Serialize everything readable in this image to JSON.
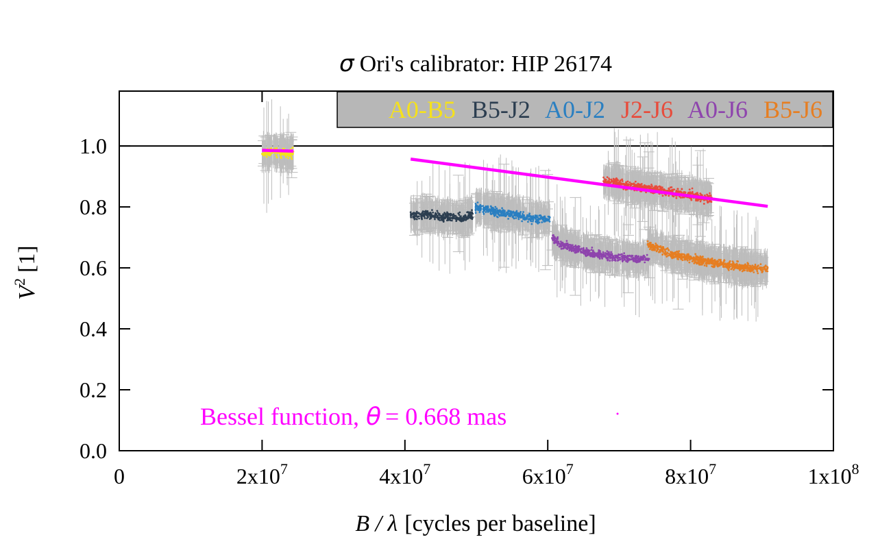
{
  "chart_data": {
    "type": "scatter",
    "title": "Ori's calibrator: HIP 26174",
    "title_symbol": "σ",
    "xlabel_symbol": "B / λ",
    "xlabel": "[cycles per baseline]",
    "ylabel_main": "V",
    "ylabel_sup": "2",
    "ylabel_unit": "[1]",
    "xlim": [
      0,
      100000000
    ],
    "ylim": [
      0,
      1.18
    ],
    "reference_line": 1.0,
    "yticks": [
      {
        "value": 0.0,
        "label": "0.0"
      },
      {
        "value": 0.2,
        "label": "0.2"
      },
      {
        "value": 0.4,
        "label": "0.4"
      },
      {
        "value": 0.6,
        "label": "0.6"
      },
      {
        "value": 0.8,
        "label": "0.8"
      },
      {
        "value": 1.0,
        "label": "1.0"
      }
    ],
    "xticks": [
      {
        "value": 0,
        "base": "0",
        "exp": ""
      },
      {
        "value": 20000000,
        "base": "2x10",
        "exp": "7"
      },
      {
        "value": 40000000,
        "base": "4x10",
        "exp": "7"
      },
      {
        "value": 60000000,
        "base": "6x10",
        "exp": "7"
      },
      {
        "value": 80000000,
        "base": "8x10",
        "exp": "7"
      },
      {
        "value": 100000000,
        "base": "1x10",
        "exp": "8"
      }
    ],
    "series": [
      {
        "name": "A0-B5",
        "color": "#f5e11c",
        "segments": [
          {
            "x": [
              20000000,
              20700000,
              21500000,
              22300000,
              23100000,
              23800000,
              24400000
            ],
            "y": [
              0.985,
              0.975,
              0.985,
              0.978,
              0.98,
              0.972,
              0.98
            ]
          }
        ]
      },
      {
        "name": "B5-J2",
        "color": "#2c3e50",
        "segments": [
          {
            "x": [
              40800000,
              42000000,
              43500000,
              45000000,
              46500000,
              48000000,
              49500000
            ],
            "y": [
              0.775,
              0.772,
              0.775,
              0.765,
              0.768,
              0.762,
              0.775
            ]
          }
        ]
      },
      {
        "name": "A0-J2",
        "color": "#2a7fc1",
        "segments": [
          {
            "x": [
              49800000,
              51000000,
              52500000,
              54000000,
              55500000,
              57000000,
              58500000,
              60300000
            ],
            "y": [
              0.8,
              0.795,
              0.785,
              0.78,
              0.775,
              0.765,
              0.76,
              0.76
            ]
          }
        ]
      },
      {
        "name": "J2-J6",
        "color": "#e74c3c",
        "segments": [
          {
            "x": [
              67800000,
              69500000,
              71000000,
              72500000,
              74000000,
              75500000,
              77000000,
              78500000,
              80000000,
              81500000,
              83000000
            ],
            "y": [
              0.885,
              0.88,
              0.87,
              0.865,
              0.86,
              0.855,
              0.85,
              0.845,
              0.84,
              0.83,
              0.825
            ]
          }
        ]
      },
      {
        "name": "A0-J6",
        "color": "#8e44ad",
        "segments": [
          {
            "x": [
              60600000,
              62000000,
              63500000,
              65000000,
              66500000,
              68000000,
              69500000,
              71000000,
              72500000,
              74200000
            ],
            "y": [
              0.7,
              0.675,
              0.665,
              0.655,
              0.645,
              0.64,
              0.635,
              0.632,
              0.628,
              0.632
            ]
          }
        ]
      },
      {
        "name": "B5-J6",
        "color": "#e67e22",
        "segments": [
          {
            "x": [
              74000000,
              75500000,
              77000000,
              78500000,
              80000000,
              81500000,
              83000000,
              84500000,
              86000000,
              87500000,
              89000000,
              90800000
            ],
            "y": [
              0.675,
              0.662,
              0.648,
              0.64,
              0.632,
              0.625,
              0.618,
              0.612,
              0.607,
              0.602,
              0.598,
              0.595
            ]
          }
        ]
      }
    ],
    "model": {
      "label": "Bessel function,",
      "theta_symbol": "θ",
      "value_text": "= 0.668 mas",
      "color": "#ff00ff",
      "segments": [
        {
          "x": [
            20000000,
            24400000
          ],
          "y": [
            0.986,
            0.983
          ]
        },
        {
          "x": [
            40800000,
            90800000
          ],
          "y": [
            0.957,
            0.802
          ]
        }
      ]
    }
  }
}
